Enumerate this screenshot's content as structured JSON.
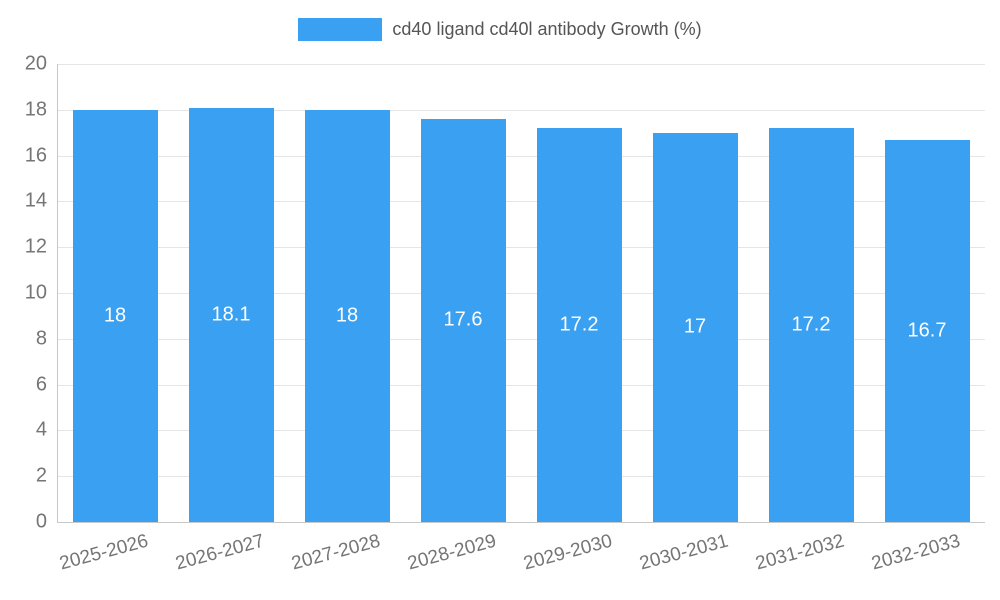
{
  "legend": {
    "label": "cd40 ligand cd40l antibody Growth (%)"
  },
  "colors": {
    "bar": "#3aa0f2",
    "grid": "#e6e6e6",
    "axis": "#c8c8c8",
    "tick_text": "#757575",
    "legend_text": "#555555",
    "bar_label_text": "#ffffff"
  },
  "chart_data": {
    "type": "bar",
    "title": "cd40 ligand cd40l antibody Growth (%)",
    "categories": [
      "2025-2026",
      "2026-2027",
      "2027-2028",
      "2028-2029",
      "2029-2030",
      "2030-2031",
      "2031-2032",
      "2032-2033"
    ],
    "values": [
      18,
      18.1,
      18,
      17.6,
      17.2,
      17,
      17.2,
      16.7
    ],
    "xlabel": "",
    "ylabel": "",
    "ylim": [
      0,
      20
    ],
    "ytick_step": 2,
    "ytick_labels": [
      "0",
      "2",
      "4",
      "6",
      "8",
      "10",
      "12",
      "14",
      "16",
      "18",
      "20"
    ],
    "grid": true,
    "legend_position": "top",
    "bar_labels_inside": true
  }
}
